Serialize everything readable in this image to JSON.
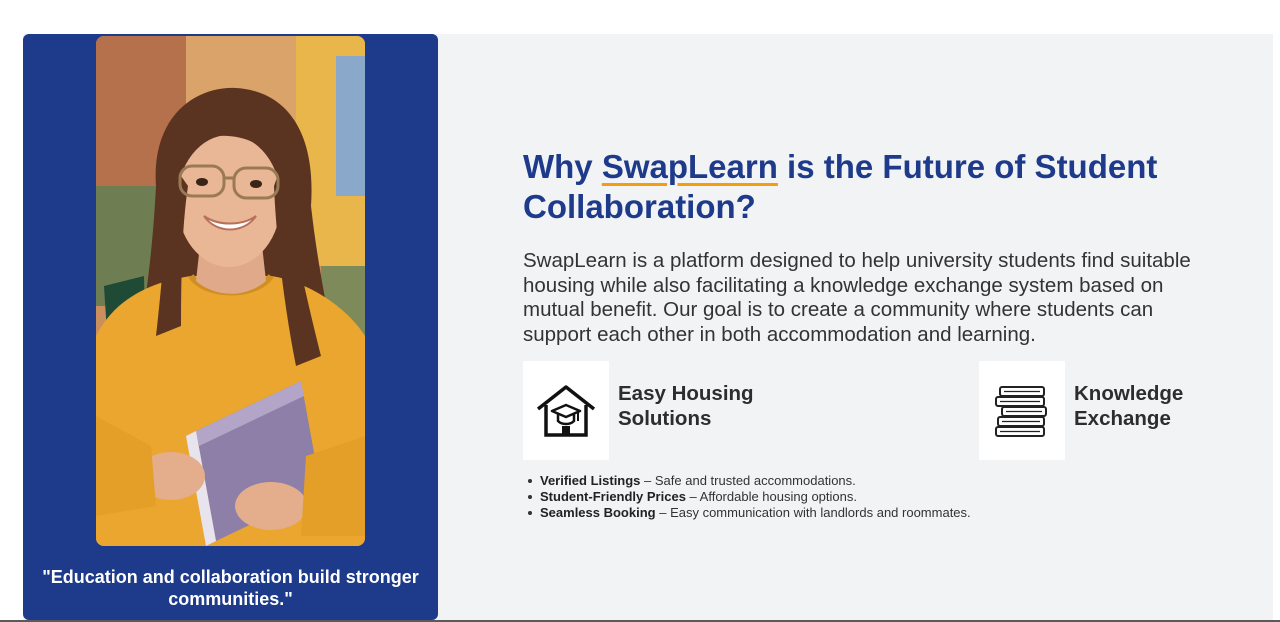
{
  "hero": {
    "quote": "\"Education and collaboration build stronger communities.\""
  },
  "intro": {
    "heading_before": "Why ",
    "heading_brand": "SwapLearn",
    "heading_after": " is the Future of Student Collaboration?",
    "description": "SwapLearn is a platform designed to help university students find suitable housing while also facilitating a knowledge exchange system based on mutual benefit. Our goal is to create a community where students can support each other in both accommodation and learning."
  },
  "features": [
    {
      "title": "Easy Housing Solutions",
      "icon": "house-graduation-cap-icon"
    },
    {
      "title": "Knowledge Exchange",
      "icon": "stacked-books-icon"
    }
  ],
  "benefits": [
    {
      "label": "Verified Listings",
      "text": " – Safe and trusted accommodations."
    },
    {
      "label": "Student-Friendly Prices",
      "text": " – Affordable housing options."
    },
    {
      "label": "Seamless Booking",
      "text": " – Easy communication with landlords and roommates."
    }
  ],
  "colors": {
    "panel_blue": "#1e3a8a",
    "heading_blue": "#1e3a8a",
    "accent_orange": "#f59e0b",
    "section_bg": "#f2f3f5"
  }
}
